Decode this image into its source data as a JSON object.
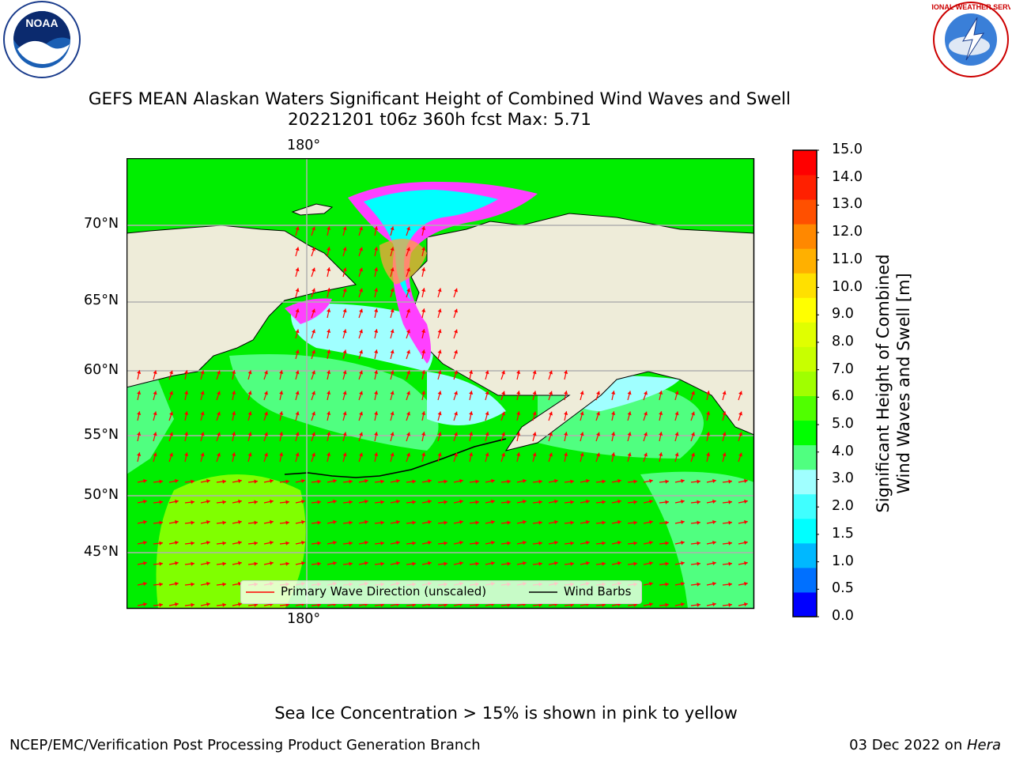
{
  "title": {
    "line1": "GEFS MEAN Alaskan Waters Significant Height of Combined Wind Waves and Swell",
    "line2": "20221201 t06z 360h fcst   Max: 5.71"
  },
  "map": {
    "lon_labels": [
      "180°",
      "180°"
    ],
    "lat_labels": [
      "70°N",
      "65°N",
      "60°N",
      "55°N",
      "50°N",
      "45°N"
    ]
  },
  "colorbar": {
    "label_line1": "Significant Height of Combined",
    "label_line2": "Wind Waves and Swell [m]",
    "ticks": [
      "15.0",
      "14.0",
      "13.0",
      "12.0",
      "11.0",
      "10.0",
      "9.0",
      "8.0",
      "7.0",
      "6.0",
      "5.0",
      "4.0",
      "3.0",
      "2.0",
      "1.5",
      "1.0",
      "0.5",
      "0.0"
    ],
    "colors": [
      "#0000ff",
      "#0070ff",
      "#00b8ff",
      "#00ffff",
      "#40ffff",
      "#a0ffff",
      "#50ff80",
      "#00ff00",
      "#50ff00",
      "#a0ff00",
      "#c8ff00",
      "#e0ff00",
      "#ffff00",
      "#ffe000",
      "#ffb000",
      "#ff8800",
      "#ff5000",
      "#ff2000",
      "#ff0000"
    ]
  },
  "legend": {
    "wave_label": "Primary Wave Direction (unscaled)",
    "barb_label": "Wind Barbs"
  },
  "caption": "Sea Ice Concentration > 15% is shown in pink to yellow",
  "footer": {
    "left": "NCEP/EMC/Verification Post Processing Product Generation Branch",
    "right_prefix": "03 Dec 2022 on ",
    "right_host": "Hera"
  },
  "logos": {
    "noaa": "NOAA",
    "nws": "NATIONAL WEATHER SERVICE"
  }
}
